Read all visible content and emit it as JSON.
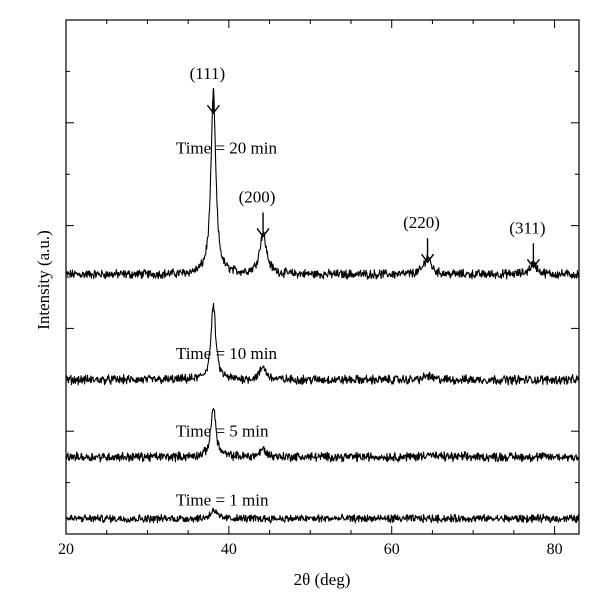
{
  "chart_data": {
    "type": "line",
    "xlabel": "2θ (deg)",
    "ylabel": "Intensity (a.u.)",
    "xlim": [
      20,
      83
    ],
    "ylim": [
      0,
      10
    ],
    "x_ticks": [
      "20",
      "40",
      "60",
      "80"
    ],
    "grid": false,
    "series": [
      {
        "name": "Time = 20 min",
        "baseline": 5.05,
        "noise": 0.07,
        "peaks": [
          {
            "x": 38.1,
            "height": 3.55,
            "width": 0.35
          },
          {
            "x": 44.2,
            "height": 0.8,
            "width": 0.5
          },
          {
            "x": 64.4,
            "height": 0.35,
            "width": 0.5
          },
          {
            "x": 77.4,
            "height": 0.22,
            "width": 0.5
          }
        ]
      },
      {
        "name": "Time = 10 min",
        "baseline": 3.0,
        "noise": 0.07,
        "peaks": [
          {
            "x": 38.1,
            "height": 1.45,
            "width": 0.35
          },
          {
            "x": 44.2,
            "height": 0.25,
            "width": 0.45
          },
          {
            "x": 64.4,
            "height": 0.08,
            "width": 0.5
          }
        ]
      },
      {
        "name": "Time = 5 min",
        "baseline": 1.5,
        "noise": 0.07,
        "peaks": [
          {
            "x": 38.1,
            "height": 1.0,
            "width": 0.35
          },
          {
            "x": 44.2,
            "height": 0.15,
            "width": 0.45
          },
          {
            "x": 64.4,
            "height": 0.06,
            "width": 0.5
          }
        ]
      },
      {
        "name": "Time = 1 min",
        "baseline": 0.3,
        "noise": 0.06,
        "peaks": [
          {
            "x": 38.1,
            "height": 0.18,
            "width": 0.4
          }
        ]
      }
    ],
    "annotations": [
      {
        "text": "(111)",
        "x": 38.1,
        "y": 8.85,
        "arrow": true
      },
      {
        "text": "(200)",
        "x": 44.2,
        "y": 6.45,
        "arrow": true
      },
      {
        "text": "(220)",
        "x": 64.4,
        "y": 5.95,
        "arrow": true
      },
      {
        "text": "(311)",
        "x": 77.4,
        "y": 5.85,
        "arrow": true
      }
    ],
    "trace_labels": [
      {
        "text": "Time = 20 min",
        "x": 33.5,
        "y": 7.4
      },
      {
        "text": "Time = 10 min",
        "x": 33.5,
        "y": 3.4
      },
      {
        "text": "Time = 5 min",
        "x": 33.5,
        "y": 1.9
      },
      {
        "text": "Time = 1 min",
        "x": 33.5,
        "y": 0.55
      }
    ]
  }
}
